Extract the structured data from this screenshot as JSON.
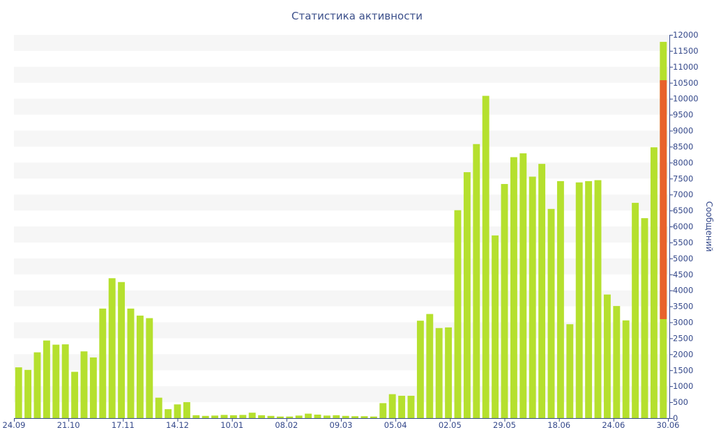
{
  "chart_data": {
    "type": "bar",
    "title": "Статистика активности",
    "ylabel": "Сообщений",
    "ylim": [
      0,
      12000
    ],
    "y_ticks": [
      0,
      500,
      1000,
      1500,
      2000,
      2500,
      3000,
      3500,
      4000,
      4500,
      5000,
      5500,
      6000,
      6500,
      7000,
      7500,
      8000,
      8500,
      9000,
      9500,
      10000,
      10500,
      11000,
      11500,
      12000
    ],
    "x_tick_labels": [
      "24.09",
      "21.10",
      "17.11",
      "14.12",
      "10.01",
      "08.02",
      "09.03",
      "05.04",
      "02.05",
      "29.05",
      "18.06",
      "24.06",
      "30.06"
    ],
    "grid": "horizontal bands",
    "y_axis_side": "right",
    "colors": {
      "bar": "#b5e02e",
      "highlight": "#e8622b",
      "axis": "#34488a",
      "band": "#f6f6f6"
    },
    "series": [
      {
        "values": [
          1590,
          1510,
          2060,
          2430,
          2300,
          2310,
          1450,
          2090,
          1900,
          3430,
          4380,
          4260,
          3430,
          3210,
          3130,
          640,
          280,
          430,
          500,
          90,
          70,
          80,
          100,
          90,
          100,
          170,
          90,
          70,
          50,
          50,
          80,
          140,
          110,
          80,
          90,
          70,
          60,
          60,
          50,
          470,
          750,
          700,
          700,
          3050,
          3260,
          2820,
          2840,
          6510,
          7700,
          8580,
          10090,
          5720,
          7330,
          8170,
          8290,
          7560,
          7960,
          6550,
          7420,
          2940,
          7380,
          7420,
          7450,
          3870,
          3510,
          3060,
          6740,
          6260,
          8480,
          11780
        ]
      }
    ],
    "highlight": {
      "start": 3100,
      "end": 10580
    }
  }
}
